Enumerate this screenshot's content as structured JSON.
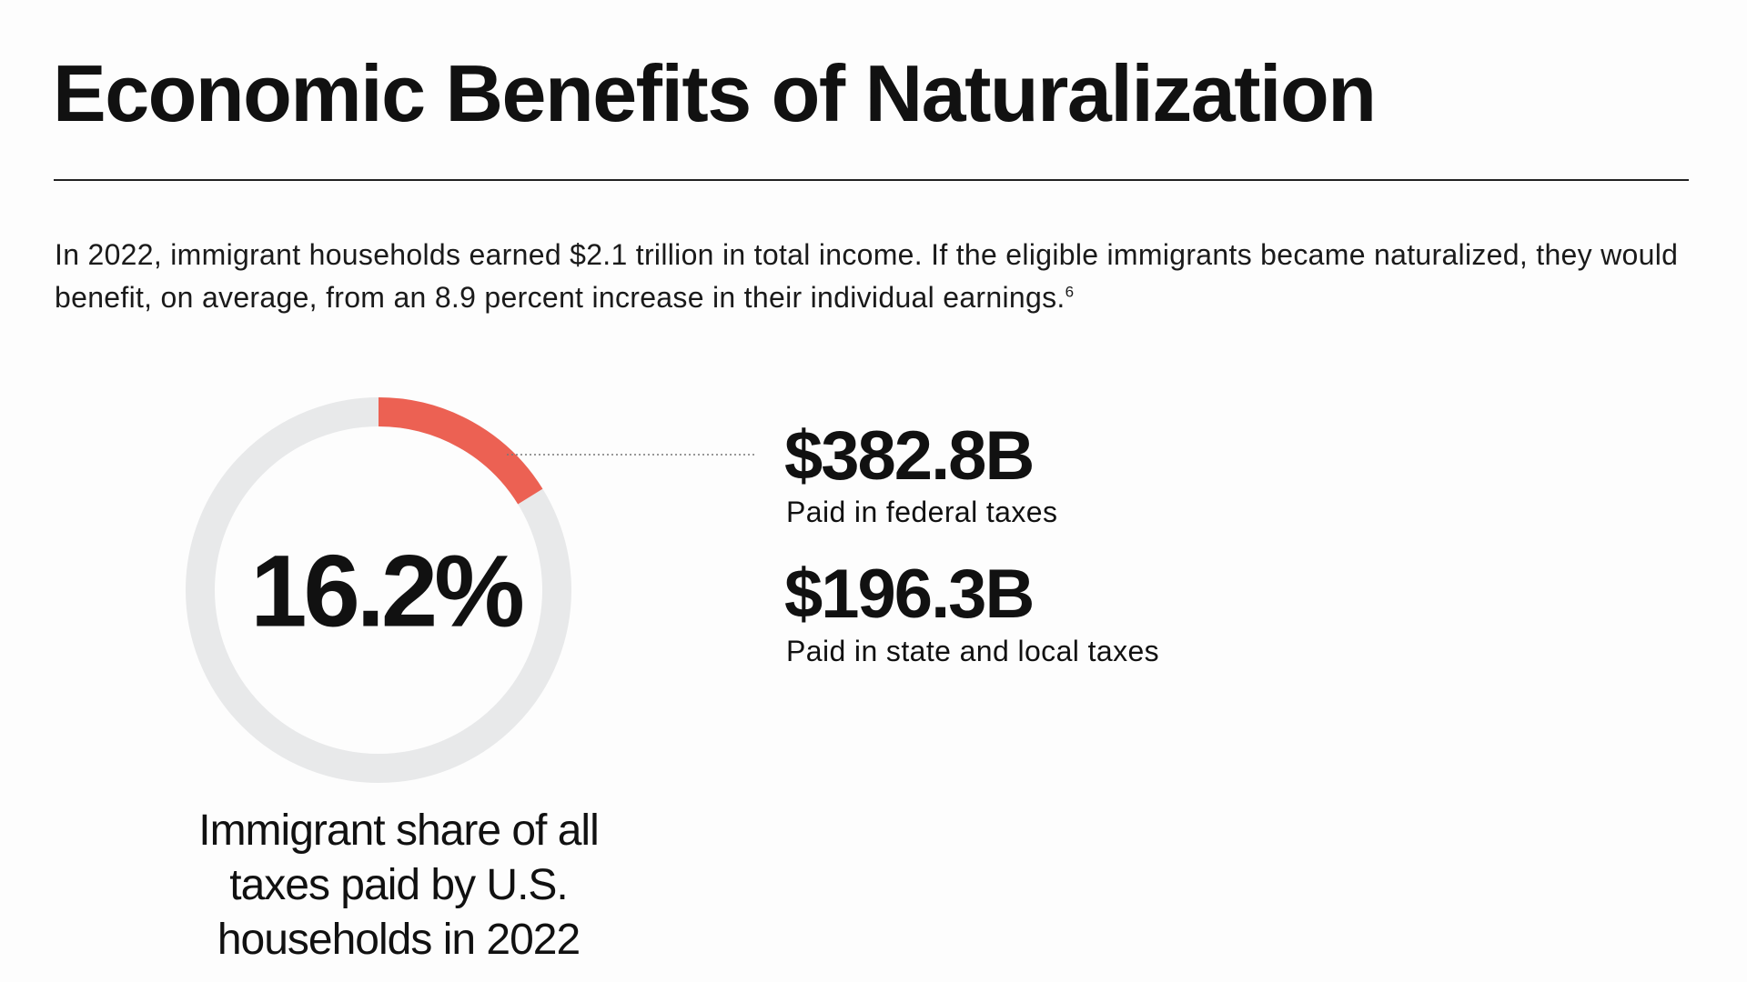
{
  "title": "Economic Benefits of Naturalization",
  "intro": {
    "text": "In 2022, immigrant households earned $2.1 trillion in total income. If the eligible immigrants became naturalized, they would benefit, on average, from an 8.9 percent increase in their individual earnings.",
    "footnote": "6"
  },
  "chart_data": {
    "type": "donut",
    "values": [
      16.2
    ],
    "value_labels": [
      "16.2%"
    ],
    "total": 100,
    "color": "#ec6153",
    "track_color": "#e8e9ea",
    "caption": "Immigrant share of all taxes paid by U.S. households in 2022"
  },
  "stats": [
    {
      "value": "$382.8B",
      "label": "Paid in federal taxes"
    },
    {
      "value": "$196.3B",
      "label": "Paid in state and local taxes"
    }
  ]
}
